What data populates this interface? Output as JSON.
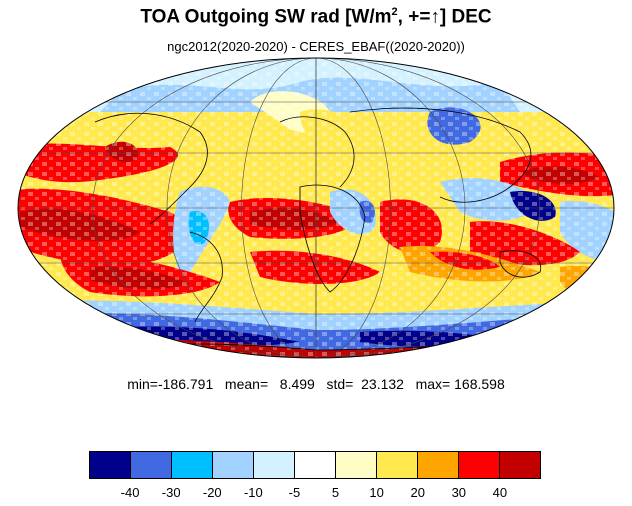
{
  "title": {
    "prefix": "TOA Outgoing SW rad [W/m",
    "superscript": "2",
    "middle": ", +=",
    "arrow": "↑",
    "suffix": "] DEC"
  },
  "subtitle": "ngc2012(2020-2020) - CERES_EBAF((2020-2020))",
  "stats": "min=-186.791   mean=   8.499   std=  23.132   max= 168.598",
  "colorbar": {
    "colors": [
      "#00008b",
      "#4169e1",
      "#00bfff",
      "#a2d2ff",
      "#d3f1ff",
      "#ffffff",
      "#fffdc6",
      "#ffe94f",
      "#ffa500",
      "#ff0000",
      "#c20000"
    ],
    "tick_labels": [
      "-40",
      "-30",
      "-20",
      "-10",
      "-5",
      "5",
      "10",
      "20",
      "30",
      "40"
    ]
  },
  "map": {
    "projection": "Mollweide",
    "grid": true
  }
}
